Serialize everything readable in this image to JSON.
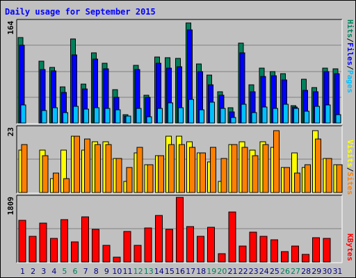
{
  "title": "Daily usage for September 2015",
  "colors": {
    "hits": "#00805c",
    "files": "#0000ff",
    "pages": "#00c0ff",
    "visits": "#ffff00",
    "sites": "#ff8000",
    "kbytes": "#ff0000",
    "weekend_day": "#00805c",
    "weekday": "#000080",
    "panel_bg": "#c0c0c0"
  },
  "chart_data": [
    {
      "type": "bar",
      "panel": "hits-files-pages",
      "ymax_label": "164",
      "ymax": 164,
      "legend": [
        "Pages",
        "/",
        "Files",
        "/",
        "Hits"
      ],
      "categories": [
        "1",
        "2",
        "3",
        "4",
        "5",
        "6",
        "7",
        "8",
        "9",
        "10",
        "11",
        "12",
        "13",
        "14",
        "15",
        "16",
        "17",
        "18",
        "19",
        "20",
        "21",
        "22",
        "23",
        "24",
        "25",
        "26",
        "27",
        "28",
        "29",
        "30",
        "31"
      ],
      "series": [
        {
          "name": "Hits",
          "values": [
            138,
            0,
            100,
            90,
            58,
            136,
            63,
            114,
            97,
            54,
            13,
            93,
            45,
            107,
            106,
            104,
            162,
            96,
            77,
            51,
            25,
            129,
            62,
            89,
            83,
            80,
            28,
            71,
            57,
            89,
            88
          ]
        },
        {
          "name": "Files",
          "values": [
            126,
            0,
            86,
            84,
            49,
            110,
            55,
            103,
            88,
            41,
            11,
            86,
            42,
            97,
            89,
            91,
            151,
            83,
            62,
            45,
            18,
            114,
            51,
            75,
            76,
            70,
            26,
            53,
            50,
            83,
            80
          ]
        },
        {
          "name": "Pages",
          "values": [
            29,
            0,
            20,
            25,
            17,
            27,
            22,
            25,
            24,
            21,
            11,
            24,
            10,
            24,
            33,
            25,
            38,
            21,
            34,
            24,
            9,
            30,
            17,
            26,
            24,
            30,
            24,
            19,
            27,
            29,
            13
          ]
        }
      ]
    },
    {
      "type": "bar",
      "panel": "visits-sites",
      "ymax_label": "23",
      "ymax": 23,
      "legend": [
        "Sites",
        "/",
        "Visits"
      ],
      "categories": [
        "1",
        "2",
        "3",
        "4",
        "5",
        "6",
        "7",
        "8",
        "9",
        "10",
        "11",
        "12",
        "13",
        "14",
        "15",
        "16",
        "17",
        "18",
        "19",
        "20",
        "21",
        "22",
        "23",
        "24",
        "25",
        "26",
        "27",
        "28",
        "29",
        "30",
        "31"
      ],
      "series": [
        {
          "name": "Visits",
          "values": [
            15,
            0,
            15,
            5,
            15,
            20,
            15,
            18,
            18,
            12,
            4,
            14,
            10,
            13,
            20,
            20,
            18,
            14,
            11,
            4,
            17,
            18,
            15,
            18,
            16,
            9,
            14,
            9,
            22,
            12,
            10
          ]
        },
        {
          "name": "Sites",
          "values": [
            17,
            0,
            13,
            7,
            5,
            20,
            19,
            17,
            17,
            12,
            9,
            16,
            10,
            13,
            17,
            17,
            16,
            14,
            16,
            12,
            17,
            16,
            13,
            17,
            22,
            9,
            7,
            10,
            19,
            12,
            10
          ]
        }
      ]
    },
    {
      "type": "bar",
      "panel": "kbytes",
      "ymax_label": "1809",
      "ymax": 1809,
      "legend": [
        "KBytes"
      ],
      "categories": [
        "1",
        "2",
        "3",
        "4",
        "5",
        "6",
        "7",
        "8",
        "9",
        "10",
        "11",
        "12",
        "13",
        "14",
        "15",
        "16",
        "17",
        "18",
        "19",
        "20",
        "21",
        "22",
        "23",
        "24",
        "25",
        "26",
        "27",
        "28",
        "29",
        "30",
        "31"
      ],
      "series": [
        {
          "name": "KBytes",
          "values": [
            1159,
            721,
            1096,
            664,
            1191,
            570,
            1271,
            915,
            468,
            138,
            865,
            466,
            960,
            1301,
            907,
            1809,
            994,
            725,
            966,
            234,
            1401,
            455,
            843,
            729,
            621,
            286,
            455,
            219,
            689,
            664,
            0
          ]
        }
      ]
    }
  ],
  "x_axis": {
    "weekend_days": [
      "5",
      "6",
      "12",
      "13",
      "19",
      "20",
      "26",
      "27"
    ]
  }
}
